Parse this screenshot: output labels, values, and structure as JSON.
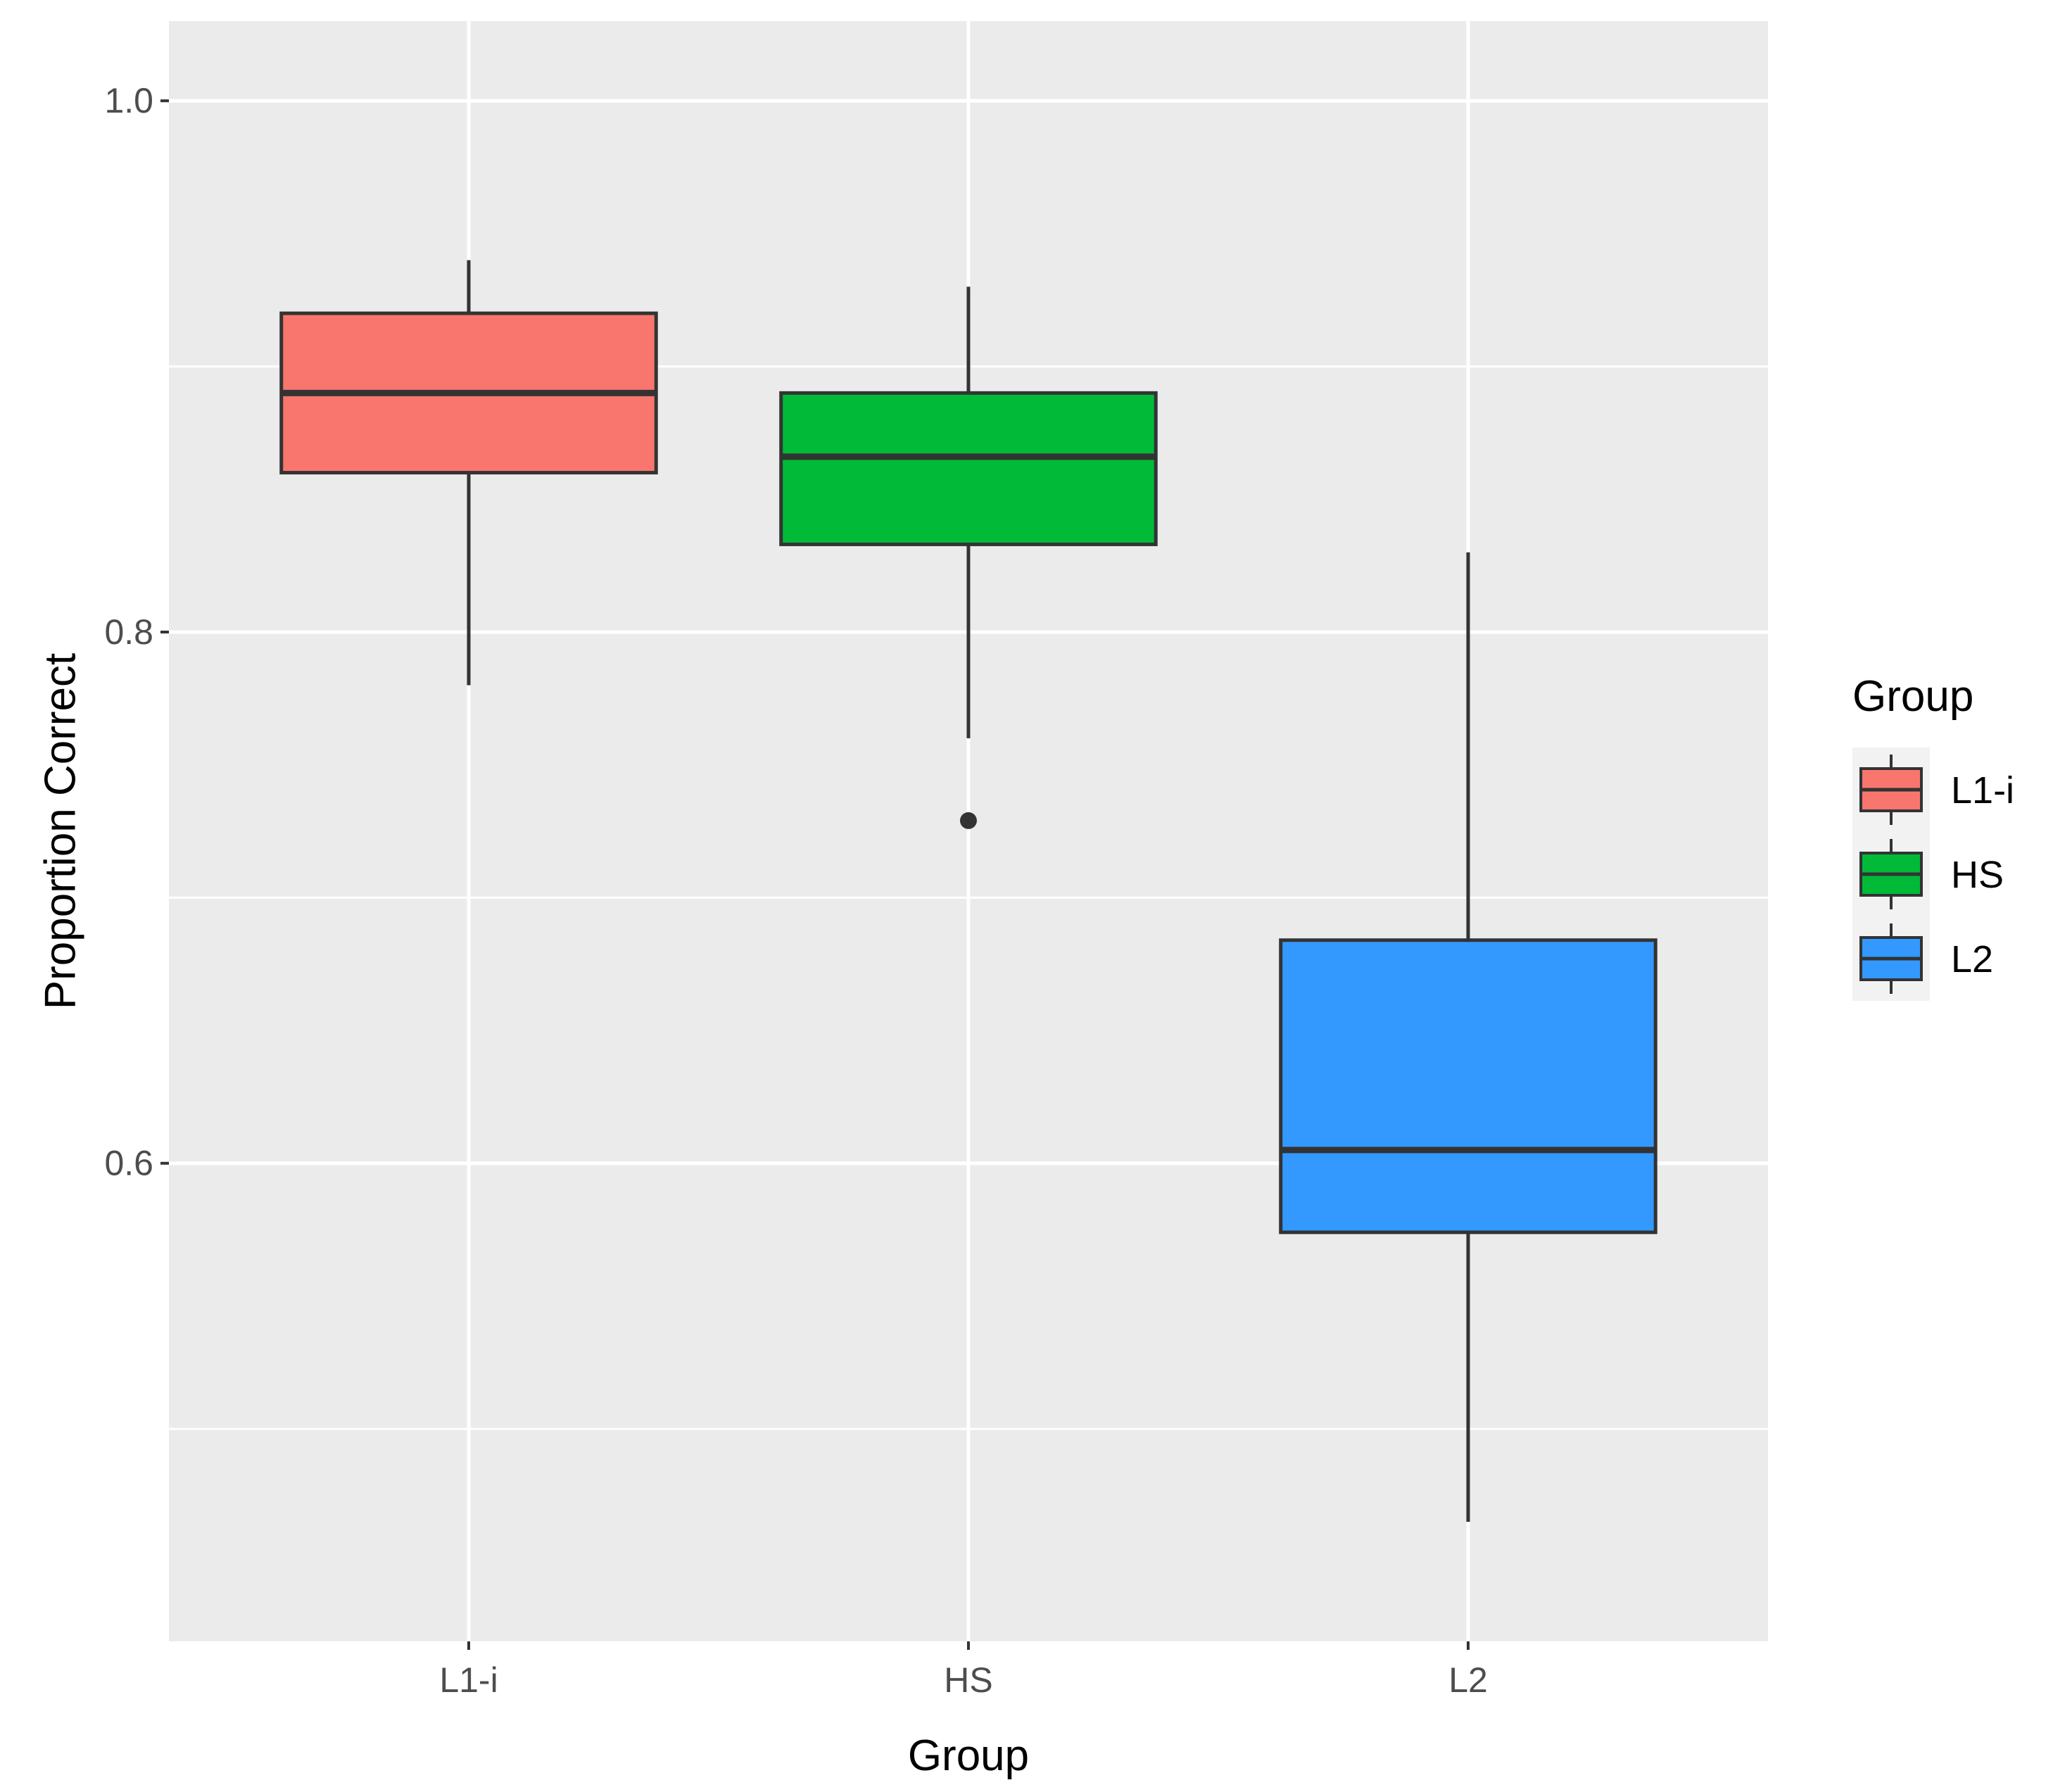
{
  "chart_data": {
    "type": "boxplot",
    "title": "",
    "xlabel": "Group",
    "ylabel": "Proportion Correct",
    "ylim": [
      0.42,
      1.03
    ],
    "yticks": [
      0.6,
      0.8,
      1.0
    ],
    "ytick_labels": [
      "0.6",
      "0.8",
      "1.0"
    ],
    "grid": true,
    "categories": [
      "L1-i",
      "HS",
      "L2"
    ],
    "boxes": [
      {
        "name": "L1-i",
        "color": "#F8766D",
        "whisker_low": 0.78,
        "q1": 0.86,
        "median": 0.89,
        "q3": 0.92,
        "whisker_high": 0.94,
        "outliers": []
      },
      {
        "name": "HS",
        "color": "#00BA38",
        "whisker_low": 0.76,
        "q1": 0.833,
        "median": 0.866,
        "q3": 0.89,
        "whisker_high": 0.93,
        "outliers": [
          0.729
        ]
      },
      {
        "name": "L2",
        "color": "#3399FF",
        "whisker_low": 0.465,
        "q1": 0.574,
        "median": 0.605,
        "q3": 0.684,
        "whisker_high": 0.83,
        "outliers": []
      }
    ],
    "legend": {
      "title": "Group",
      "position": "right",
      "entries": [
        "L1-i",
        "HS",
        "L2"
      ]
    }
  }
}
